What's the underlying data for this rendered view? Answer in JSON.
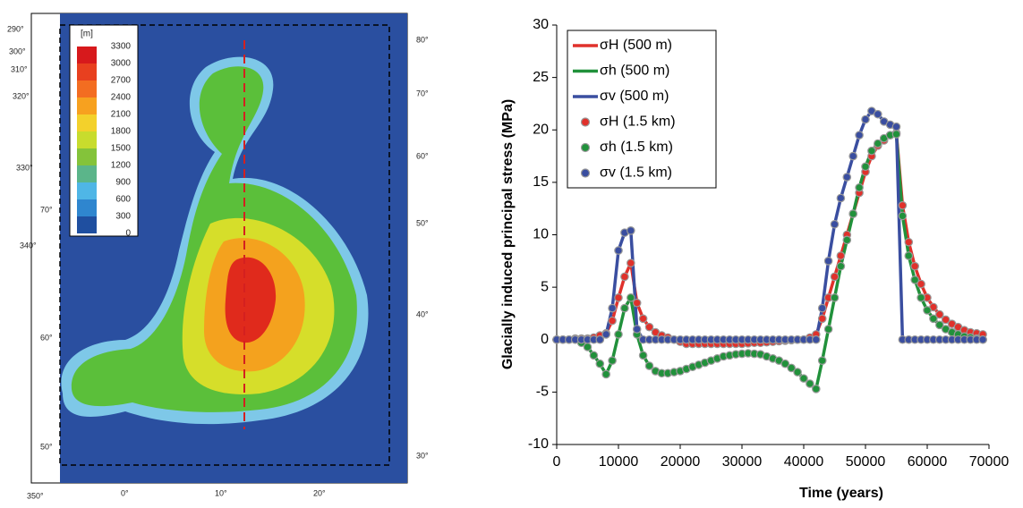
{
  "map": {
    "unit_label": "[m]",
    "legend_levels": [
      3300,
      3000,
      2700,
      2400,
      2100,
      1800,
      1500,
      1200,
      900,
      600,
      300,
      0
    ],
    "lat_labels": [
      "50°",
      "60°",
      "70°"
    ],
    "lon_labels": [
      "290°",
      "300°",
      "310°",
      "320°",
      "330°",
      "340°",
      "350°",
      "0°",
      "10°",
      "20°"
    ],
    "right_labels": [
      "80°",
      "70°",
      "60°",
      "50°",
      "40°",
      "30°"
    ]
  },
  "chart_data": {
    "type": "line",
    "xlabel": "Time (years)",
    "ylabel": "Glacially induced principal stress (MPa)",
    "xlim": [
      0,
      70000
    ],
    "xticks": [
      0,
      10000,
      20000,
      30000,
      40000,
      50000,
      60000,
      70000
    ],
    "ylim": [
      -10,
      30
    ],
    "yticks": [
      -10,
      -5,
      0,
      5,
      10,
      15,
      20,
      25,
      30
    ],
    "legend": "upper left",
    "x": [
      0,
      1000,
      2000,
      3000,
      4000,
      5000,
      6000,
      7000,
      8000,
      9000,
      10000,
      11000,
      12000,
      13000,
      14000,
      15000,
      16000,
      17000,
      18000,
      19000,
      20000,
      21000,
      22000,
      23000,
      24000,
      25000,
      26000,
      27000,
      28000,
      29000,
      30000,
      31000,
      32000,
      33000,
      34000,
      35000,
      36000,
      37000,
      38000,
      39000,
      40000,
      41000,
      42000,
      43000,
      44000,
      45000,
      46000,
      47000,
      48000,
      49000,
      50000,
      51000,
      52000,
      53000,
      54000,
      55000,
      56000,
      57000,
      58000,
      59000,
      60000,
      61000,
      62000,
      63000,
      64000,
      65000,
      66000,
      67000,
      68000,
      69000
    ],
    "series": [
      {
        "name": "σH (500 m)",
        "color": "#e0312b",
        "style": "line",
        "values": [
          0,
          0,
          0,
          0.1,
          0.1,
          0.1,
          0.2,
          0.4,
          0.6,
          1.8,
          4,
          6,
          7.3,
          3.5,
          2,
          1.2,
          0.7,
          0.4,
          0.2,
          0,
          -0.2,
          -0.4,
          -0.4,
          -0.4,
          -0.4,
          -0.4,
          -0.4,
          -0.4,
          -0.4,
          -0.4,
          -0.4,
          -0.35,
          -0.3,
          -0.3,
          -0.25,
          -0.2,
          -0.15,
          -0.1,
          -0.05,
          0,
          0,
          0.2,
          0.5,
          2,
          4,
          6,
          8,
          10,
          12,
          14,
          16,
          17.5,
          18.5,
          19,
          19.5,
          19.7,
          12.8,
          9.3,
          7,
          5.3,
          4,
          3.1,
          2.4,
          1.9,
          1.5,
          1.2,
          0.9,
          0.7,
          0.6,
          0.5
        ]
      },
      {
        "name": "σh (500 m)",
        "color": "#21913b",
        "style": "line",
        "values": [
          0,
          0,
          0,
          0,
          -0.3,
          -0.7,
          -1.5,
          -2.3,
          -3.3,
          -2,
          0.5,
          3,
          4,
          0.5,
          -1.5,
          -2.5,
          -3,
          -3.2,
          -3.2,
          -3.1,
          -3,
          -2.8,
          -2.6,
          -2.4,
          -2.2,
          -2,
          -1.8,
          -1.6,
          -1.5,
          -1.4,
          -1.35,
          -1.3,
          -1.35,
          -1.4,
          -1.6,
          -1.8,
          -2,
          -2.3,
          -2.7,
          -3.1,
          -3.7,
          -4.2,
          -4.7,
          -2,
          1,
          4,
          7,
          9.5,
          12,
          14.5,
          16.5,
          18,
          18.7,
          19.2,
          19.5,
          19.6,
          11.8,
          8,
          5.7,
          4,
          2.8,
          2,
          1.4,
          1,
          0.7,
          0.5,
          0.3,
          0.2,
          0.1,
          0
        ]
      },
      {
        "name": "σv (500 m)",
        "color": "#3a4ea0",
        "style": "line",
        "values": [
          0,
          0,
          0,
          0,
          0,
          0,
          0,
          0,
          0.5,
          3,
          8.5,
          10.2,
          10.4,
          1,
          0,
          0,
          0,
          0,
          0,
          0,
          0,
          0,
          0,
          0,
          0,
          0,
          0,
          0,
          0,
          0,
          0,
          0,
          0,
          0,
          0,
          0,
          0,
          0,
          0,
          0,
          0,
          0,
          0,
          3,
          7.5,
          11,
          13.5,
          15.5,
          17.5,
          19.5,
          21,
          21.8,
          21.5,
          20.8,
          20.5,
          20.3,
          0,
          0,
          0,
          0,
          0,
          0,
          0,
          0,
          0,
          0,
          0,
          0,
          0,
          0
        ]
      },
      {
        "name": "σH (1.5 km)",
        "color": "#e0312b",
        "style": "dot",
        "values": [
          0,
          0,
          0,
          0.1,
          0.1,
          0.1,
          0.2,
          0.4,
          0.6,
          1.8,
          4,
          6,
          7.3,
          3.5,
          2,
          1.2,
          0.7,
          0.4,
          0.2,
          0,
          -0.2,
          -0.4,
          -0.4,
          -0.4,
          -0.4,
          -0.4,
          -0.4,
          -0.4,
          -0.4,
          -0.4,
          -0.4,
          -0.35,
          -0.3,
          -0.3,
          -0.25,
          -0.2,
          -0.15,
          -0.1,
          -0.05,
          0,
          0,
          0.2,
          0.5,
          2,
          4,
          6,
          8,
          10,
          12,
          14,
          16,
          17.5,
          18.5,
          19,
          19.5,
          19.7,
          12.8,
          9.3,
          7,
          5.3,
          4,
          3.1,
          2.4,
          1.9,
          1.5,
          1.2,
          0.9,
          0.7,
          0.6,
          0.5
        ]
      },
      {
        "name": "σh (1.5 km)",
        "color": "#21913b",
        "style": "dot",
        "values": [
          0,
          0,
          0,
          0,
          -0.3,
          -0.7,
          -1.5,
          -2.3,
          -3.3,
          -2,
          0.5,
          3,
          4,
          0.5,
          -1.5,
          -2.5,
          -3,
          -3.2,
          -3.2,
          -3.1,
          -3,
          -2.8,
          -2.6,
          -2.4,
          -2.2,
          -2,
          -1.8,
          -1.6,
          -1.5,
          -1.4,
          -1.35,
          -1.3,
          -1.35,
          -1.4,
          -1.6,
          -1.8,
          -2,
          -2.3,
          -2.7,
          -3.1,
          -3.7,
          -4.2,
          -4.7,
          -2,
          1,
          4,
          7,
          9.5,
          12,
          14.5,
          16.5,
          18,
          18.7,
          19.2,
          19.5,
          19.6,
          11.8,
          8,
          5.7,
          4,
          2.8,
          2,
          1.4,
          1,
          0.7,
          0.5,
          0.3,
          0.2,
          0.1,
          0
        ]
      },
      {
        "name": "σv (1.5 km)",
        "color": "#3a4ea0",
        "style": "dot",
        "values": [
          0,
          0,
          0,
          0,
          0,
          0,
          0,
          0,
          0.5,
          3,
          8.5,
          10.2,
          10.4,
          1,
          0,
          0,
          0,
          0,
          0,
          0,
          0,
          0,
          0,
          0,
          0,
          0,
          0,
          0,
          0,
          0,
          0,
          0,
          0,
          0,
          0,
          0,
          0,
          0,
          0,
          0,
          0,
          0,
          0,
          3,
          7.5,
          11,
          13.5,
          15.5,
          17.5,
          19.5,
          21,
          21.8,
          21.5,
          20.8,
          20.5,
          20.3,
          0,
          0,
          0,
          0,
          0,
          0,
          0,
          0,
          0,
          0,
          0,
          0,
          0,
          0
        ]
      }
    ]
  }
}
